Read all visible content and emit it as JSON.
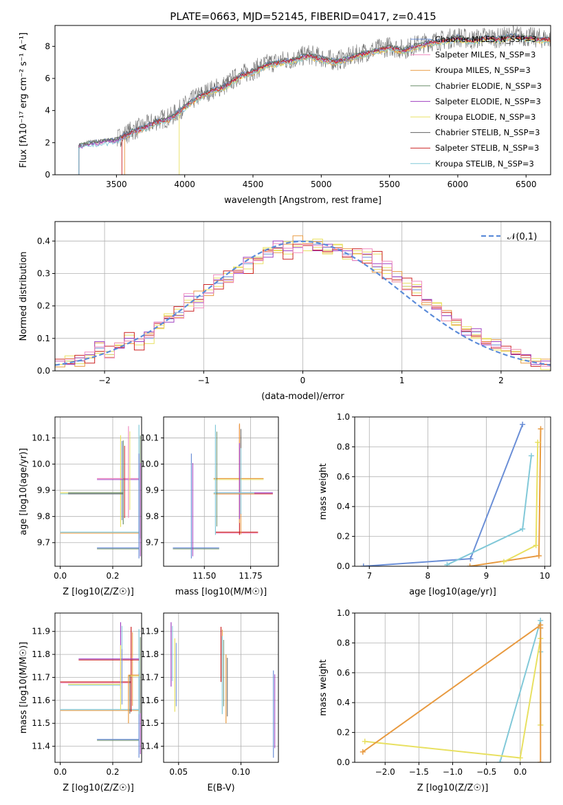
{
  "title": "PLATE=0663, MJD=52145, FIBERID=0417, z=0.415",
  "colors": [
    "#6a8ed6",
    "#f08cc0",
    "#e89a40",
    "#6a8e6a",
    "#a040c0",
    "#e8e060",
    "#606060",
    "#cc2020",
    "#80c8d8"
  ],
  "chart_data": [
    {
      "type": "line",
      "title": "PLATE=0663, MJD=52145, FIBERID=0417, z=0.415",
      "xlabel": "wavelength [Angstrom, rest frame]",
      "ylabel": "Flux [fλ10⁻¹⁷ erg cm⁻² s⁻¹ A⁻¹]",
      "xlim": [
        3050,
        6680
      ],
      "ylim": [
        0,
        9.3
      ],
      "xticks": [
        "3500",
        "4000",
        "4500",
        "5000",
        "5500",
        "6000",
        "6500"
      ],
      "yticks": [
        "0",
        "2",
        "4",
        "6",
        "8"
      ],
      "grid": false,
      "legend": "upper-right",
      "legend_entries": [
        "Chabrier MILES, N_SSP=3",
        "Salpeter MILES, N_SSP=3",
        "Kroupa MILES, N_SSP=3",
        "Chabrier ELODIE, N_SSP=3",
        "Salpeter ELODIE, N_SSP=3",
        "Kroupa ELODIE, N_SSP=3",
        "Chabrier STELIB, N_SSP=3",
        "Salpeter STELIB, N_SSP=3",
        "Kroupa STELIB, N_SSP=3"
      ],
      "continuum": {
        "x": [
          3220,
          3300,
          3400,
          3500,
          3600,
          3700,
          3800,
          3900,
          4000,
          4100,
          4200,
          4300,
          4400,
          4500,
          4600,
          4700,
          4800,
          4900,
          5000,
          5100,
          5200,
          5300,
          5400,
          5500,
          5600,
          5700,
          5800,
          5900,
          6000,
          6100,
          6200,
          6300,
          6400,
          6500,
          6600
        ],
        "y": [
          1.8,
          2.0,
          2.1,
          2.2,
          2.7,
          3.0,
          3.4,
          3.6,
          4.3,
          4.9,
          5.3,
          5.6,
          6.2,
          6.5,
          6.9,
          7.1,
          7.2,
          7.5,
          7.3,
          7.1,
          7.3,
          7.6,
          7.8,
          8.0,
          7.8,
          8.1,
          8.3,
          8.4,
          8.6,
          8.4,
          8.6,
          8.5,
          8.7,
          8.6,
          8.5
        ]
      }
    },
    {
      "type": "line",
      "xlabel": "(data-model)/error",
      "ylabel": "Normed distribution",
      "xlim": [
        -2.5,
        2.5
      ],
      "ylim": [
        0,
        0.46
      ],
      "xticks": [
        "−2",
        "−1",
        "0",
        "1",
        "2"
      ],
      "yticks": [
        "0.0",
        "0.1",
        "0.2",
        "0.3",
        "0.4"
      ],
      "grid": true,
      "legend": "upper-right",
      "legend_entries": [
        "𝒩(0,1)"
      ],
      "bins_x": [
        -2.5,
        -2.4,
        -2.3,
        -2.2,
        -2.1,
        -2.0,
        -1.9,
        -1.8,
        -1.7,
        -1.6,
        -1.5,
        -1.4,
        -1.3,
        -1.2,
        -1.1,
        -1.0,
        -0.9,
        -0.8,
        -0.7,
        -0.6,
        -0.5,
        -0.4,
        -0.3,
        -0.2,
        -0.1,
        0.0,
        0.1,
        0.2,
        0.3,
        0.4,
        0.5,
        0.6,
        0.7,
        0.8,
        0.9,
        1.0,
        1.1,
        1.2,
        1.3,
        1.4,
        1.5,
        1.6,
        1.7,
        1.8,
        1.9,
        2.0,
        2.1,
        2.2,
        2.3,
        2.4,
        2.5
      ],
      "series": [
        {
          "values": [
            0.02,
            0.03,
            0.03,
            0.04,
            0.07,
            0.05,
            0.07,
            0.1,
            0.09,
            0.1,
            0.14,
            0.16,
            0.18,
            0.21,
            0.23,
            0.24,
            0.27,
            0.29,
            0.31,
            0.33,
            0.35,
            0.36,
            0.38,
            0.39,
            0.4,
            0.4,
            0.39,
            0.38,
            0.38,
            0.36,
            0.37,
            0.35,
            0.32,
            0.31,
            0.29,
            0.26,
            0.25,
            0.22,
            0.2,
            0.17,
            0.15,
            0.12,
            0.12,
            0.09,
            0.08,
            0.07,
            0.05,
            0.04,
            0.03,
            0.02
          ]
        },
        {
          "values": [
            0.02,
            0.03,
            0.04,
            0.04,
            0.06,
            0.06,
            0.08,
            0.11,
            0.08,
            0.11,
            0.13,
            0.17,
            0.19,
            0.2,
            0.22,
            0.25,
            0.26,
            0.3,
            0.32,
            0.3,
            0.33,
            0.38,
            0.37,
            0.36,
            0.39,
            0.37,
            0.38,
            0.36,
            0.39,
            0.35,
            0.36,
            0.34,
            0.36,
            0.3,
            0.28,
            0.27,
            0.24,
            0.21,
            0.21,
            0.18,
            0.14,
            0.13,
            0.1,
            0.1,
            0.07,
            0.06,
            0.06,
            0.04,
            0.03,
            0.02
          ]
        },
        {
          "values": [
            0.03,
            0.02,
            0.04,
            0.05,
            0.09,
            0.04,
            0.07,
            0.1,
            0.09,
            0.12,
            0.15,
            0.15,
            0.17,
            0.23,
            0.21,
            0.24,
            0.28,
            0.28,
            0.3,
            0.35,
            0.34,
            0.35,
            0.4,
            0.37,
            0.38,
            0.39,
            0.37,
            0.39,
            0.37,
            0.37,
            0.34,
            0.36,
            0.33,
            0.33,
            0.29,
            0.25,
            0.26,
            0.22,
            0.19,
            0.17,
            0.16,
            0.11,
            0.13,
            0.08,
            0.09,
            0.07,
            0.05,
            0.05,
            0.02,
            0.03
          ]
        }
      ],
      "normal_curve": {
        "name": "𝒩(0,1)",
        "mu": 0,
        "sigma": 1
      }
    },
    {
      "type": "scatter",
      "xlabel": "Z [log10(Z/Z☉)]",
      "ylabel": "age  [log10(age/yr)]",
      "xlim": [
        -0.02,
        0.31
      ],
      "ylim": [
        9.61,
        10.18
      ],
      "xticks": [
        "0.0",
        "0.2"
      ],
      "yticks": [
        "9.7",
        "9.8",
        "9.9",
        "10.0",
        "10.1"
      ],
      "grid": true,
      "errorbars": [
        {
          "x": 0.3,
          "y": 9.74,
          "xerr": [
            0.3,
            0.0
          ],
          "yerr": [
            0.03,
            0.41
          ]
        },
        {
          "x": 0.23,
          "y": 9.89,
          "xerr": [
            0.23,
            0.0
          ],
          "yerr": [
            0.13,
            0.22
          ]
        },
        {
          "x": 0.26,
          "y": 9.945,
          "xerr": [
            0.12,
            0.04
          ],
          "yerr": [
            0.15,
            0.2
          ]
        },
        {
          "x": 0.3,
          "y": 9.68,
          "xerr": [
            0.16,
            0.0
          ],
          "yerr": [
            0.04,
            0.36
          ]
        },
        {
          "x": 0.24,
          "y": 9.89,
          "xerr": [
            0.21,
            0.0
          ],
          "yerr": [
            0.12,
            0.2
          ]
        }
      ]
    },
    {
      "type": "scatter",
      "xlabel": "mass [log10(M/M☉)]",
      "xlim": [
        11.28,
        11.9
      ],
      "ylim": [
        9.61,
        10.18
      ],
      "xticks": [
        "11.50",
        "11.75"
      ],
      "yticks": [
        "9.7",
        "9.8",
        "9.9",
        "10.0",
        "10.1"
      ],
      "grid": true,
      "errorbars": [
        {
          "x": 11.43,
          "y": 9.68,
          "xerr": [
            0.1,
            0.15
          ],
          "yerr": [
            0.04,
            0.36
          ]
        },
        {
          "x": 11.69,
          "y": 9.74,
          "xerr": [
            0.13,
            0.1
          ],
          "yerr": [
            0.01,
            0.41
          ]
        },
        {
          "x": 11.69,
          "y": 9.945,
          "xerr": [
            0.14,
            0.13
          ],
          "yerr": [
            0.17,
            0.21
          ]
        },
        {
          "x": 11.69,
          "y": 9.89,
          "xerr": [
            0.13,
            0.18
          ],
          "yerr": [
            0.1,
            0.19
          ]
        },
        {
          "x": 11.56,
          "y": 9.89,
          "xerr": [
            0.01,
            0.21
          ],
          "yerr": [
            0.16,
            0.26
          ]
        }
      ]
    },
    {
      "type": "line",
      "xlabel": "age  [log10(age/yr)]",
      "ylabel": "mass weight",
      "xlim": [
        6.75,
        10.1
      ],
      "ylim": [
        0,
        1.0
      ],
      "xticks": [
        "7",
        "8",
        "9",
        "10"
      ],
      "yticks": [
        "0.0",
        "0.2",
        "0.4",
        "0.6",
        "0.8",
        "1.0"
      ],
      "grid": true,
      "series": [
        {
          "x": [
            6.9,
            8.73,
            9.62
          ],
          "y": [
            0.0,
            0.05,
            0.95
          ]
        },
        {
          "x": [
            8.33,
            9.62,
            9.77
          ],
          "y": [
            0.01,
            0.25,
            0.74
          ]
        },
        {
          "x": [
            8.72,
            9.9,
            9.93
          ],
          "y": [
            0.0,
            0.07,
            0.92
          ]
        },
        {
          "x": [
            9.3,
            9.85,
            9.88
          ],
          "y": [
            0.03,
            0.14,
            0.83
          ]
        }
      ]
    },
    {
      "type": "scatter",
      "xlabel": "Z [log10(Z/Z☉)]",
      "ylabel": "mass [log10(M/M☉)]",
      "xlim": [
        -0.02,
        0.31
      ],
      "ylim": [
        11.33,
        11.98
      ],
      "xticks": [
        "0.0",
        "0.2"
      ],
      "yticks": [
        "11.4",
        "11.5",
        "11.6",
        "11.7",
        "11.8",
        "11.9"
      ],
      "grid": true,
      "errorbars": [
        {
          "x": 0.3,
          "y": 11.43,
          "xerr": [
            0.16,
            0.0
          ],
          "yerr": [
            0.08,
            0.29
          ]
        },
        {
          "x": 0.3,
          "y": 11.56,
          "xerr": [
            0.3,
            0.0
          ],
          "yerr": [
            0.02,
            0.35
          ]
        },
        {
          "x": 0.27,
          "y": 11.68,
          "xerr": [
            0.27,
            0.0
          ],
          "yerr": [
            0.13,
            0.24
          ]
        },
        {
          "x": 0.23,
          "y": 11.78,
          "xerr": [
            0.16,
            0.07
          ],
          "yerr": [
            0.13,
            0.16
          ]
        },
        {
          "x": 0.26,
          "y": 11.71,
          "xerr": [
            0.0,
            0.04
          ],
          "yerr": [
            0.21,
            0.0
          ]
        },
        {
          "x": 0.23,
          "y": 11.67,
          "xerr": [
            0.2,
            0.0
          ],
          "yerr": [
            0.11,
            0.17
          ]
        }
      ]
    },
    {
      "type": "scatter",
      "xlabel": "E(B-V)",
      "xlim": [
        0.038,
        0.13
      ],
      "ylim": [
        11.33,
        11.98
      ],
      "xticks": [
        "0.05",
        "0.10"
      ],
      "yticks": [
        "11.4",
        "11.5",
        "11.6",
        "11.7",
        "11.8",
        "11.9"
      ],
      "grid": true,
      "errorbars": [
        {
          "x": 0.044,
          "y": 11.78,
          "yerr": [
            0.12,
            0.16
          ]
        },
        {
          "x": 0.047,
          "y": 11.67,
          "yerr": [
            0.12,
            0.2
          ]
        },
        {
          "x": 0.084,
          "y": 11.8,
          "yerr": [
            0.12,
            0.12
          ]
        },
        {
          "x": 0.085,
          "y": 11.71,
          "yerr": [
            0.17,
            0.17
          ]
        },
        {
          "x": 0.088,
          "y": 11.65,
          "yerr": [
            0.15,
            0.15
          ]
        },
        {
          "x": 0.126,
          "y": 11.56,
          "yerr": [
            0.21,
            0.17
          ]
        }
      ]
    },
    {
      "type": "line",
      "xlabel": "Z [log10(Z/Z☉)]",
      "ylabel": "mass weight",
      "xlim": [
        -2.45,
        0.45
      ],
      "ylim": [
        0,
        1.0
      ],
      "xticks": [
        "−2.0",
        "−1.5",
        "−1.0",
        "−0.5",
        "0.0"
      ],
      "yticks": [
        "0.0",
        "0.2",
        "0.4",
        "0.6",
        "0.8",
        "1.0"
      ],
      "grid": true,
      "series": [
        {
          "x": [
            -0.3,
            0.3,
            0.3,
            0.3
          ],
          "y": [
            0.0,
            0.95,
            0.25,
            0.74
          ]
        },
        {
          "x": [
            -2.3,
            0.0,
            0.3,
            0.3
          ],
          "y": [
            0.14,
            0.03,
            0.83,
            0.25
          ]
        },
        {
          "x": [
            -2.33,
            0.3,
            0.3,
            0.3
          ],
          "y": [
            0.07,
            0.92,
            0.0,
            0.9
          ]
        }
      ]
    }
  ]
}
